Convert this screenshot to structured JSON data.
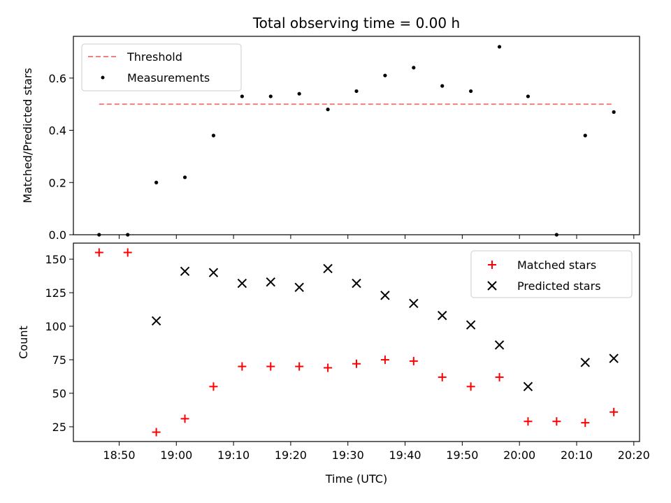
{
  "chart_data": [
    {
      "type": "scatter",
      "title": "Total observing time = 0.00 h",
      "xlabel": "",
      "ylabel": "Matched/Predicted stars",
      "ylim": [
        0,
        0.76
      ],
      "yticks": [
        "0.0",
        "0.2",
        "0.4",
        "0.6"
      ],
      "legend": {
        "placement": "top-left"
      },
      "threshold": {
        "name": "Threshold",
        "value": 0.5,
        "x_start": "18:46:30",
        "x_end": "20:16:30",
        "color": "#f08080",
        "style": "dashed"
      },
      "series": [
        {
          "name": "Measurements",
          "marker": "dot",
          "color": "#000000",
          "x": [
            "18:46:30",
            "18:51:30",
            "18:56:30",
            "19:01:30",
            "19:06:30",
            "19:11:30",
            "19:16:30",
            "19:21:30",
            "19:26:30",
            "19:31:30",
            "19:36:30",
            "19:41:30",
            "19:46:30",
            "19:51:30",
            "19:56:30",
            "20:01:30",
            "20:06:30",
            "20:11:30",
            "20:16:30"
          ],
          "values": [
            0.0,
            0.0,
            0.2,
            0.22,
            0.38,
            0.53,
            0.53,
            0.54,
            0.48,
            0.55,
            0.61,
            0.64,
            0.57,
            0.55,
            0.72,
            0.53,
            0.0,
            0.38,
            0.47
          ]
        }
      ]
    },
    {
      "type": "scatter",
      "title": "",
      "xlabel": "Time (UTC)",
      "ylabel": "Count",
      "ylim": [
        14,
        162
      ],
      "yticks": [
        "25",
        "50",
        "75",
        "100",
        "125",
        "150"
      ],
      "xticks": [
        "18:50",
        "19:00",
        "19:10",
        "19:20",
        "19:30",
        "19:40",
        "19:50",
        "20:00",
        "20:10",
        "20:20"
      ],
      "xlim": [
        "18:42",
        "20:21"
      ],
      "legend": {
        "placement": "top-right"
      },
      "series": [
        {
          "name": "Matched stars",
          "marker": "plus",
          "color": "#ff0000",
          "x": [
            "18:46:30",
            "18:51:30",
            "18:56:30",
            "19:01:30",
            "19:06:30",
            "19:11:30",
            "19:16:30",
            "19:21:30",
            "19:26:30",
            "19:31:30",
            "19:36:30",
            "19:41:30",
            "19:46:30",
            "19:51:30",
            "19:56:30",
            "20:01:30",
            "20:06:30",
            "20:11:30",
            "20:16:30"
          ],
          "values": [
            155,
            155,
            21,
            31,
            55,
            70,
            70,
            70,
            69,
            72,
            75,
            74,
            62,
            55,
            62,
            29,
            29,
            28,
            36
          ]
        },
        {
          "name": "Predicted stars",
          "marker": "x",
          "color": "#000000",
          "x": [
            "18:56:30",
            "19:01:30",
            "19:06:30",
            "19:11:30",
            "19:16:30",
            "19:21:30",
            "19:26:30",
            "19:31:30",
            "19:36:30",
            "19:41:30",
            "19:46:30",
            "19:51:30",
            "19:56:30",
            "20:01:30",
            "20:11:30",
            "20:16:30"
          ],
          "values": [
            104,
            141,
            140,
            132,
            133,
            129,
            143,
            132,
            123,
            117,
            108,
            101,
            86,
            55,
            73,
            76
          ]
        }
      ]
    }
  ]
}
